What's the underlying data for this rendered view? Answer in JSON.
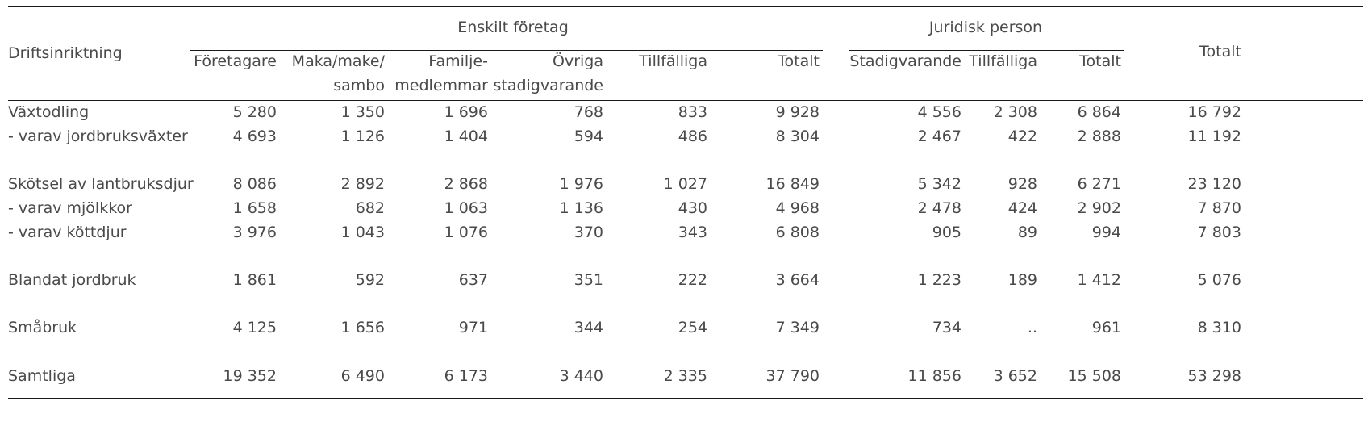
{
  "table": {
    "header": {
      "row_label": "Driftsinriktning",
      "groups": [
        {
          "label": "Enskilt företag"
        },
        {
          "label": "Juridisk person"
        }
      ],
      "total_label": "Totalt",
      "columns": [
        {
          "line1": "Företagare",
          "line2": ""
        },
        {
          "line1": "Maka/make/",
          "line2": "sambo"
        },
        {
          "line1": "Familje-",
          "line2": "medlemmar"
        },
        {
          "line1": "Övriga",
          "line2": "stadigvarande"
        },
        {
          "line1": "Tillfälliga",
          "line2": ""
        },
        {
          "line1": "Totalt",
          "line2": ""
        },
        {
          "line1": "Stadigvarande",
          "line2": ""
        },
        {
          "line1": "Tillfälliga",
          "line2": ""
        },
        {
          "line1": "Totalt",
          "line2": ""
        }
      ]
    },
    "rows": [
      {
        "label": "Växtodling",
        "values": [
          "5 280",
          "1 350",
          "1 696",
          "768",
          "833",
          "9 928",
          "4 556",
          "2 308",
          "6 864",
          "16 792"
        ]
      },
      {
        "label": "- varav jordbruksväxter",
        "values": [
          "4 693",
          "1 126",
          "1 404",
          "594",
          "486",
          "8 304",
          "2 467",
          "422",
          "2 888",
          "11 192"
        ]
      },
      {
        "label": "Skötsel av lantbruksdjur",
        "values": [
          "8 086",
          "2 892",
          "2 868",
          "1 976",
          "1 027",
          "16 849",
          "5 342",
          "928",
          "6 271",
          "23 120"
        ]
      },
      {
        "label": "- varav mjölkkor",
        "values": [
          "1 658",
          "682",
          "1 063",
          "1 136",
          "430",
          "4 968",
          "2 478",
          "424",
          "2 902",
          "7 870"
        ]
      },
      {
        "label": "- varav köttdjur",
        "values": [
          "3 976",
          "1 043",
          "1 076",
          "370",
          "343",
          "6 808",
          "905",
          "89",
          "994",
          "7 803"
        ]
      },
      {
        "label": "Blandat jordbruk",
        "values": [
          "1 861",
          "592",
          "637",
          "351",
          "222",
          "3 664",
          "1 223",
          "189",
          "1 412",
          "5 076"
        ]
      },
      {
        "label": "Småbruk",
        "values": [
          "4 125",
          "1 656",
          "971",
          "344",
          "254",
          "7 349",
          "734",
          "..",
          "961",
          "8 310"
        ]
      },
      {
        "label": "Samtliga",
        "values": [
          "19 352",
          "6 490",
          "6 173",
          "3 440",
          "2 335",
          "37 790",
          "11 856",
          "3 652",
          "15 508",
          "53 298"
        ]
      }
    ]
  }
}
